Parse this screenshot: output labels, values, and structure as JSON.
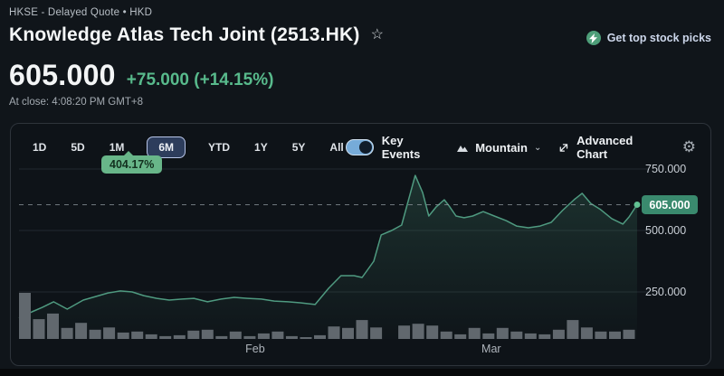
{
  "header": {
    "exchange_line": "HKSE - Delayed Quote • HKD",
    "title": "Knowledge Atlas Tech Joint (2513.HK)",
    "star_icon": "☆",
    "promo_label": "Get top stock picks"
  },
  "quote": {
    "price": "605.000",
    "change": "+75.000",
    "change_pct": "(+14.15%)",
    "at_close": "At close: 4:08:20 PM GMT+8"
  },
  "toolbar": {
    "ranges": [
      "1D",
      "5D",
      "1M",
      "6M",
      "YTD",
      "1Y",
      "5Y",
      "All"
    ],
    "active_range": "6M",
    "range_gain_badge": "404.17%",
    "key_events_label": "Key Events",
    "key_events_on": true,
    "chart_type_label": "Mountain",
    "advanced_chart_label": "Advanced Chart"
  },
  "chart_data": {
    "type": "area",
    "title": "6M price history with volume",
    "currency": "HKD",
    "ylim": [
      110,
      780
    ],
    "grid": true,
    "y_ticks": [
      {
        "label": "750.000",
        "value": 750
      },
      {
        "label": "500.000",
        "value": 500
      },
      {
        "label": "250.000",
        "value": 250
      }
    ],
    "current_price": {
      "label": "605.000",
      "value": 605
    },
    "x_labels": [
      {
        "label": "Feb",
        "pos": 0.382
      },
      {
        "label": "Mar",
        "pos": 0.764
      }
    ],
    "price_points": [
      [
        0.0,
        143
      ],
      [
        0.021,
        169
      ],
      [
        0.038,
        188
      ],
      [
        0.056,
        210
      ],
      [
        0.078,
        180
      ],
      [
        0.104,
        217
      ],
      [
        0.125,
        232
      ],
      [
        0.144,
        246
      ],
      [
        0.164,
        254
      ],
      [
        0.183,
        250
      ],
      [
        0.202,
        235
      ],
      [
        0.223,
        224
      ],
      [
        0.243,
        217
      ],
      [
        0.264,
        221
      ],
      [
        0.283,
        224
      ],
      [
        0.305,
        210
      ],
      [
        0.327,
        221
      ],
      [
        0.348,
        228
      ],
      [
        0.37,
        224
      ],
      [
        0.392,
        221
      ],
      [
        0.413,
        213
      ],
      [
        0.435,
        210
      ],
      [
        0.455,
        206
      ],
      [
        0.479,
        199
      ],
      [
        0.501,
        265
      ],
      [
        0.521,
        316
      ],
      [
        0.542,
        316
      ],
      [
        0.555,
        309
      ],
      [
        0.574,
        375
      ],
      [
        0.586,
        482
      ],
      [
        0.603,
        500
      ],
      [
        0.619,
        522
      ],
      [
        0.641,
        724
      ],
      [
        0.653,
        654
      ],
      [
        0.663,
        559
      ],
      [
        0.675,
        596
      ],
      [
        0.688,
        625
      ],
      [
        0.696,
        599
      ],
      [
        0.707,
        559
      ],
      [
        0.72,
        552
      ],
      [
        0.734,
        559
      ],
      [
        0.751,
        577
      ],
      [
        0.769,
        559
      ],
      [
        0.788,
        540
      ],
      [
        0.805,
        518
      ],
      [
        0.824,
        511
      ],
      [
        0.843,
        518
      ],
      [
        0.861,
        533
      ],
      [
        0.879,
        581
      ],
      [
        0.898,
        625
      ],
      [
        0.911,
        651
      ],
      [
        0.925,
        610
      ],
      [
        0.941,
        585
      ],
      [
        0.959,
        548
      ],
      [
        0.977,
        526
      ],
      [
        0.987,
        555
      ],
      [
        1.0,
        605
      ]
    ],
    "volume_rel": [
      1.0,
      0.43,
      0.55,
      0.24,
      0.35,
      0.2,
      0.25,
      0.14,
      0.16,
      0.1,
      0.06,
      0.08,
      0.18,
      0.2,
      0.06,
      0.16,
      0.06,
      0.12,
      0.16,
      0.06,
      0.04,
      0.08,
      0.27,
      0.24,
      0.41,
      0.25,
      0.0,
      0.29,
      0.33,
      0.29,
      0.16,
      0.1,
      0.24,
      0.12,
      0.24,
      0.16,
      0.12,
      0.1,
      0.2,
      0.41,
      0.25,
      0.16,
      0.16,
      0.2
    ],
    "colors": {
      "line": "#4f9a80",
      "area_top": "rgba(62,122,100,0.30)",
      "area_bottom": "rgba(62,122,100,0.02)",
      "dashed_line": "#8f979e",
      "grid": "#232a30",
      "volume_bar": "#61686e",
      "price_badge_bg": "#3a8a6e",
      "price_badge_text": "#ffffff",
      "axis_text": "#c9cfd6",
      "month_text": "#aeb4bb",
      "end_dot": "#62c193",
      "accent_green": "#58ba8c"
    }
  }
}
